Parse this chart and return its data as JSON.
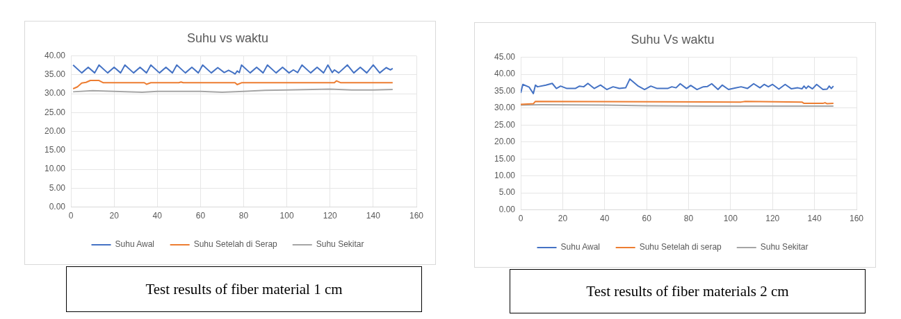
{
  "chart_data": [
    {
      "type": "line",
      "title": "Suhu vs waktu",
      "xlim": [
        0,
        160
      ],
      "xticks": [
        0,
        20,
        40,
        60,
        80,
        100,
        120,
        140,
        160
      ],
      "ylim": [
        0,
        40
      ],
      "yticks": [
        {
          "value": 0,
          "label": "0.00"
        },
        {
          "value": 5,
          "label": "5.00"
        },
        {
          "value": 10,
          "label": "10.00"
        },
        {
          "value": 15,
          "label": "15.00"
        },
        {
          "value": 20,
          "label": "20.00"
        },
        {
          "value": 25,
          "label": "25.00"
        },
        {
          "value": 30,
          "label": "30.00"
        },
        {
          "value": 35,
          "label": "35.00"
        },
        {
          "value": 40,
          "label": "40.00"
        }
      ],
      "grid": true,
      "legend": "bottom",
      "marker": "none",
      "line_style": "solid",
      "annotations": [
        "Test results of fiber material 1 cm"
      ],
      "series": [
        {
          "name": "Suhu Awal",
          "color": "#4472c4",
          "x": [
            1,
            5,
            8,
            11,
            13,
            17,
            20,
            23,
            25,
            29,
            32,
            35,
            37,
            41,
            44,
            47,
            49,
            53,
            56,
            59,
            61,
            65,
            68,
            71,
            73,
            75,
            76,
            77,
            78,
            79,
            83,
            86,
            89,
            91,
            95,
            98,
            101,
            103,
            105,
            107,
            111,
            114,
            117,
            119,
            121,
            122,
            124,
            128,
            131,
            134,
            137,
            140,
            143,
            146,
            148,
            149
          ],
          "values": [
            37.6,
            35.5,
            37.0,
            35.5,
            37.6,
            35.5,
            37.0,
            35.5,
            37.6,
            35.5,
            37.0,
            35.5,
            37.6,
            35.5,
            37.0,
            35.5,
            37.6,
            35.5,
            37.0,
            35.5,
            37.6,
            35.5,
            36.9,
            35.6,
            36.2,
            35.6,
            35.2,
            36.0,
            35.6,
            37.6,
            35.5,
            37.0,
            35.5,
            37.6,
            35.5,
            37.0,
            35.5,
            36.3,
            35.6,
            37.6,
            35.5,
            37.0,
            35.5,
            37.6,
            35.6,
            36.3,
            35.5,
            37.6,
            35.5,
            37.0,
            35.5,
            37.6,
            35.5,
            36.9,
            36.3,
            36.7
          ]
        },
        {
          "name": "Suhu Setelah di Serap",
          "color": "#ed7d31",
          "x": [
            1,
            3,
            5,
            7,
            9,
            13,
            15,
            34,
            35,
            37,
            50,
            51,
            52,
            76,
            77,
            79,
            122,
            123,
            125,
            149
          ],
          "values": [
            31.3,
            31.8,
            32.8,
            33.0,
            33.5,
            33.5,
            32.9,
            32.9,
            32.5,
            32.9,
            32.9,
            33.1,
            32.9,
            32.9,
            32.4,
            32.9,
            32.9,
            33.4,
            32.9,
            32.9
          ]
        },
        {
          "name": "Suhu Sekitar",
          "color": "#a5a5a5",
          "x": [
            1,
            10,
            20,
            33,
            40,
            60,
            70,
            80,
            90,
            100,
            120,
            130,
            140,
            149
          ],
          "values": [
            30.5,
            30.8,
            30.6,
            30.4,
            30.6,
            30.6,
            30.4,
            30.6,
            30.9,
            31.0,
            31.2,
            31.0,
            31.0,
            31.1
          ]
        }
      ]
    },
    {
      "type": "line",
      "title": "Suhu Vs waktu",
      "xlim": [
        0,
        160
      ],
      "xticks": [
        0,
        20,
        40,
        60,
        80,
        100,
        120,
        140,
        160
      ],
      "ylim": [
        0,
        45
      ],
      "yticks": [
        {
          "value": 0,
          "label": "0.00"
        },
        {
          "value": 5,
          "label": "5.00"
        },
        {
          "value": 10,
          "label": "10.00"
        },
        {
          "value": 15,
          "label": "15.00"
        },
        {
          "value": 20,
          "label": "20.00"
        },
        {
          "value": 25,
          "label": "25.00"
        },
        {
          "value": 30,
          "label": "30.00"
        },
        {
          "value": 35,
          "label": "35.00"
        },
        {
          "value": 40,
          "label": "40.00"
        },
        {
          "value": 45,
          "label": "45.00"
        }
      ],
      "grid": true,
      "legend": "bottom",
      "marker": "none",
      "line_style": "solid",
      "annotations": [
        "Test results of fiber materials 2 cm"
      ],
      "series": [
        {
          "name": "Suhu Awal",
          "color": "#4472c4",
          "x": [
            0,
            1,
            4,
            6,
            7,
            8,
            12,
            15,
            17,
            19,
            22,
            26,
            28,
            30,
            32,
            35,
            38,
            41,
            44,
            47,
            50,
            52,
            56,
            59,
            62,
            65,
            70,
            72,
            74,
            76,
            79,
            81,
            84,
            87,
            89,
            91,
            94,
            96,
            99,
            102,
            105,
            108,
            111,
            114,
            116,
            118,
            120,
            123,
            126,
            129,
            132,
            134,
            135,
            136,
            137,
            139,
            141,
            144,
            146,
            147,
            148,
            149
          ],
          "values": [
            34.5,
            37.0,
            36.2,
            34.3,
            36.8,
            36.3,
            36.8,
            37.3,
            35.8,
            36.5,
            35.8,
            35.8,
            36.5,
            36.3,
            37.3,
            35.8,
            36.8,
            35.5,
            36.3,
            35.8,
            36.0,
            38.6,
            36.5,
            35.5,
            36.5,
            35.8,
            35.8,
            36.3,
            36.0,
            37.2,
            35.8,
            36.7,
            35.5,
            36.3,
            36.4,
            37.2,
            35.5,
            36.8,
            35.5,
            35.9,
            36.3,
            35.8,
            37.2,
            36.0,
            37.0,
            36.3,
            37.0,
            35.6,
            37.0,
            35.7,
            36.0,
            35.7,
            36.5,
            35.8,
            36.5,
            35.7,
            37.0,
            35.5,
            35.6,
            36.5,
            35.8,
            36.5
          ]
        },
        {
          "name": "Suhu Setelah di serap",
          "color": "#ed7d31",
          "x": [
            0,
            6,
            7,
            105,
            107,
            134,
            135,
            144,
            145,
            146,
            149
          ],
          "values": [
            31.1,
            31.3,
            32.0,
            31.8,
            32.0,
            31.8,
            31.4,
            31.4,
            31.6,
            31.3,
            31.4
          ]
        },
        {
          "name": "Suhu Sekitar",
          "color": "#a5a5a5",
          "x": [
            0,
            10,
            40,
            60,
            90,
            149
          ],
          "values": [
            30.9,
            31.0,
            30.9,
            30.7,
            30.6,
            30.6
          ]
        }
      ]
    }
  ]
}
